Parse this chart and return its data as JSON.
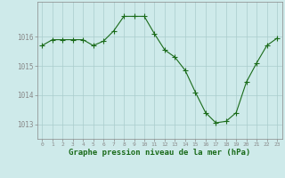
{
  "x": [
    0,
    1,
    2,
    3,
    4,
    5,
    6,
    7,
    8,
    9,
    10,
    11,
    12,
    13,
    14,
    15,
    16,
    17,
    18,
    19,
    20,
    21,
    22,
    23
  ],
  "y": [
    1015.7,
    1015.9,
    1015.9,
    1015.9,
    1015.9,
    1015.7,
    1015.85,
    1016.2,
    1016.7,
    1016.7,
    1016.7,
    1016.1,
    1015.55,
    1015.3,
    1014.85,
    1014.1,
    1013.4,
    1013.05,
    1013.1,
    1013.4,
    1014.45,
    1015.1,
    1015.7,
    1015.95
  ],
  "line_color": "#1a6b1a",
  "marker": "+",
  "marker_color": "#1a6b1a",
  "marker_size": 4,
  "marker_linewidth": 0.8,
  "line_width": 0.8,
  "background_color": "#ceeaea",
  "grid_color": "#aacccc",
  "ylabel_ticks": [
    1013,
    1014,
    1015,
    1016
  ],
  "xlabel_label": "Graphe pression niveau de la mer (hPa)",
  "xlim": [
    -0.5,
    23.5
  ],
  "ylim": [
    1012.5,
    1017.2
  ],
  "spine_color": "#888888",
  "tick_label_color": "#1a6b1a",
  "xlabel_color": "#1a6b1a",
  "xtick_fontsize": 4.5,
  "ytick_fontsize": 5.5,
  "xlabel_fontsize": 6.5
}
